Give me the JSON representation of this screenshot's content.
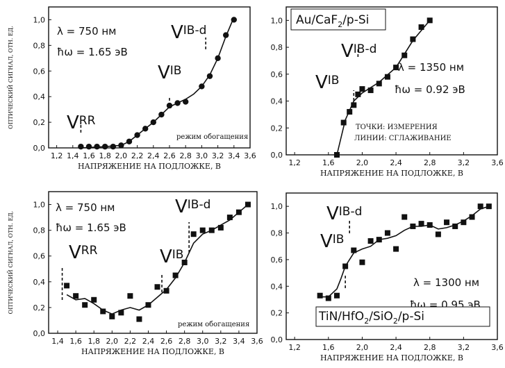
{
  "chart_data": [
    {
      "type": "scatter",
      "marker": "circle",
      "xlabel": "НАПРЯЖЕНИЕ НА ПОДЛОЖКЕ, В",
      "ylabel": "ОПТИЧЕСКИЙ СИГНАЛ, ОТН. ЕД.",
      "xlim": [
        1.1,
        3.6
      ],
      "ylim": [
        0,
        1.1
      ],
      "xticks": [
        "1,2",
        "1,4",
        "1,6",
        "1,8",
        "2,0",
        "2,2",
        "2,4",
        "2,6",
        "2,8",
        "3,0",
        "3,2",
        "3,4",
        "3,6"
      ],
      "yticks": [
        "0,0",
        "0,2",
        "0,4",
        "0,6",
        "0,8",
        "1,0"
      ],
      "annotations": [
        "λ = 750 нм",
        "ħω = 1.65 эВ",
        "режим обогащения"
      ],
      "markers": [
        {
          "label": "V",
          "sub": "RR",
          "x": 1.5
        },
        {
          "label": "V",
          "sub": "IB",
          "x": 2.6
        },
        {
          "label": "V",
          "sub": "IB-d",
          "x": 3.05
        }
      ],
      "points": {
        "x": [
          1.5,
          1.6,
          1.7,
          1.8,
          1.9,
          2.0,
          2.1,
          2.2,
          2.3,
          2.4,
          2.5,
          2.6,
          2.7,
          2.8,
          3.0,
          3.1,
          3.2,
          3.3,
          3.4
        ],
        "y": [
          0.01,
          0.01,
          0.01,
          0.01,
          0.01,
          0.02,
          0.05,
          0.1,
          0.15,
          0.2,
          0.26,
          0.33,
          0.35,
          0.36,
          0.48,
          0.56,
          0.7,
          0.88,
          1.0
        ]
      },
      "line": {
        "x": [
          1.5,
          1.8,
          2.0,
          2.1,
          2.2,
          2.3,
          2.4,
          2.5,
          2.6,
          2.7,
          2.8,
          2.9,
          3.0,
          3.1,
          3.2,
          3.3,
          3.4
        ],
        "y": [
          0.0,
          0.01,
          0.02,
          0.05,
          0.1,
          0.15,
          0.2,
          0.26,
          0.32,
          0.35,
          0.38,
          0.42,
          0.48,
          0.57,
          0.7,
          0.87,
          1.02
        ]
      }
    },
    {
      "type": "scatter",
      "marker": "square",
      "xlabel": "НАПРЯЖЕНИЕ НА ПОДЛОЖКЕ, В",
      "xlim": [
        1.1,
        3.6
      ],
      "ylim": [
        0,
        1.1
      ],
      "xticks": [
        "1,2",
        "1,6",
        "2,0",
        "2,4",
        "2,8",
        "3,2",
        "3,6"
      ],
      "yticks": [
        "0,0",
        "0,2",
        "0,4",
        "0,6",
        "0,8",
        "1,0"
      ],
      "sample_label": "Au/CaF",
      "sample_sub": "2",
      "sample_tail": "/p-Si",
      "annotations": [
        "λ = 1350 нм",
        "ħω = 0.92 эВ",
        "ТОЧКИ: ИЗМЕРЕНИЯ",
        "ЛИНИИ: СГЛАЖИВАНИЕ"
      ],
      "markers": [
        {
          "label": "V",
          "sub": "IB",
          "x": 1.9
        },
        {
          "label": "V",
          "sub": "IB-d",
          "x": 1.95
        }
      ],
      "points": {
        "x": [
          1.7,
          1.78,
          1.85,
          1.9,
          1.95,
          2.0,
          2.1,
          2.2,
          2.3,
          2.4,
          2.5,
          2.6,
          2.7,
          2.8
        ],
        "y": [
          0.0,
          0.24,
          0.32,
          0.37,
          0.45,
          0.49,
          0.48,
          0.53,
          0.58,
          0.65,
          0.74,
          0.86,
          0.95,
          1.0
        ]
      },
      "line": {
        "x": [
          1.7,
          1.8,
          1.9,
          2.0,
          2.2,
          2.4,
          2.6,
          2.8
        ],
        "y": [
          0.0,
          0.26,
          0.4,
          0.46,
          0.54,
          0.65,
          0.85,
          1.0
        ]
      }
    },
    {
      "type": "scatter",
      "marker": "square",
      "xlabel": "НАПРЯЖЕНИЕ НА ПОДЛОЖКЕ, В",
      "ylabel": "ОПТИЧЕСКИЙ СИГНАЛ, ОТН. ЕД.",
      "xlim": [
        1.3,
        3.6
      ],
      "ylim": [
        0,
        1.1
      ],
      "xticks": [
        "1,4",
        "1,6",
        "1,8",
        "2,0",
        "2,2",
        "2,4",
        "2,6",
        "2,8",
        "3,0",
        "3,2",
        "3,4",
        "3,6"
      ],
      "yticks": [
        "0,0",
        "0,2",
        "0,4",
        "0,6",
        "0,8",
        "1,0"
      ],
      "annotations": [
        "λ = 750 нм",
        "ħω = 1.65 эВ",
        "режим обогащения"
      ],
      "markers": [
        {
          "label": "V",
          "sub": "RR",
          "x": 1.45
        },
        {
          "label": "V",
          "sub": "IB",
          "x": 2.55
        },
        {
          "label": "V",
          "sub": "IB-d",
          "x": 2.85
        }
      ],
      "points": {
        "x": [
          1.5,
          1.6,
          1.7,
          1.8,
          1.9,
          2.0,
          2.1,
          2.2,
          2.3,
          2.4,
          2.5,
          2.6,
          2.7,
          2.8,
          2.9,
          3.0,
          3.1,
          3.2,
          3.3,
          3.4,
          3.5
        ],
        "y": [
          0.37,
          0.29,
          0.22,
          0.26,
          0.17,
          0.13,
          0.16,
          0.29,
          0.11,
          0.22,
          0.36,
          0.33,
          0.45,
          0.55,
          0.77,
          0.8,
          0.8,
          0.82,
          0.9,
          0.94,
          1.0
        ]
      },
      "line": {
        "x": [
          1.5,
          1.6,
          1.7,
          1.8,
          1.9,
          2.0,
          2.1,
          2.2,
          2.3,
          2.4,
          2.5,
          2.6,
          2.7,
          2.8,
          2.9,
          3.0,
          3.1,
          3.2,
          3.3,
          3.4,
          3.5
        ],
        "y": [
          0.3,
          0.26,
          0.27,
          0.23,
          0.18,
          0.15,
          0.18,
          0.2,
          0.18,
          0.22,
          0.28,
          0.34,
          0.43,
          0.55,
          0.7,
          0.77,
          0.8,
          0.84,
          0.88,
          0.94,
          1.0
        ]
      }
    },
    {
      "type": "scatter",
      "marker": "square",
      "xlabel": "НАПРЯЖЕНИЕ НА ПОДЛОЖКЕ, В",
      "xlim": [
        1.1,
        3.6
      ],
      "ylim": [
        0,
        1.1
      ],
      "xticks": [
        "1,2",
        "1,6",
        "2,0",
        "2,4",
        "2,8",
        "3,2",
        "3,6"
      ],
      "yticks": [
        "0,0",
        "0,2",
        "0,4",
        "0,6",
        "0,8",
        "1,0"
      ],
      "sample_label": "TiN/HfO",
      "sample_sub": "2",
      "sample_mid": "/SiO",
      "sample_sub2": "2",
      "sample_tail": "/p-Si",
      "annotations": [
        "λ = 1300 нм",
        "ħω = 0.95 эВ"
      ],
      "markers": [
        {
          "label": "V",
          "sub": "IB",
          "x": 1.8
        },
        {
          "label": "V",
          "sub": "IB-d",
          "x": 1.85
        }
      ],
      "points": {
        "x": [
          1.5,
          1.6,
          1.7,
          1.8,
          1.9,
          2.0,
          2.1,
          2.2,
          2.3,
          2.4,
          2.5,
          2.6,
          2.7,
          2.8,
          2.9,
          3.0,
          3.1,
          3.2,
          3.3,
          3.4,
          3.5
        ],
        "y": [
          0.33,
          0.31,
          0.33,
          0.55,
          0.67,
          0.58,
          0.74,
          0.75,
          0.8,
          0.68,
          0.92,
          0.85,
          0.87,
          0.86,
          0.79,
          0.88,
          0.85,
          0.88,
          0.92,
          1.0,
          1.0
        ]
      },
      "line": {
        "x": [
          1.5,
          1.6,
          1.7,
          1.75,
          1.8,
          1.9,
          2.0,
          2.1,
          2.2,
          2.3,
          2.4,
          2.5,
          2.6,
          2.7,
          2.8,
          2.9,
          3.0,
          3.1,
          3.2,
          3.3,
          3.4,
          3.5
        ],
        "y": [
          0.32,
          0.32,
          0.38,
          0.46,
          0.55,
          0.65,
          0.68,
          0.7,
          0.75,
          0.76,
          0.78,
          0.82,
          0.85,
          0.85,
          0.86,
          0.83,
          0.84,
          0.86,
          0.89,
          0.93,
          0.98,
          1.0
        ]
      }
    }
  ]
}
